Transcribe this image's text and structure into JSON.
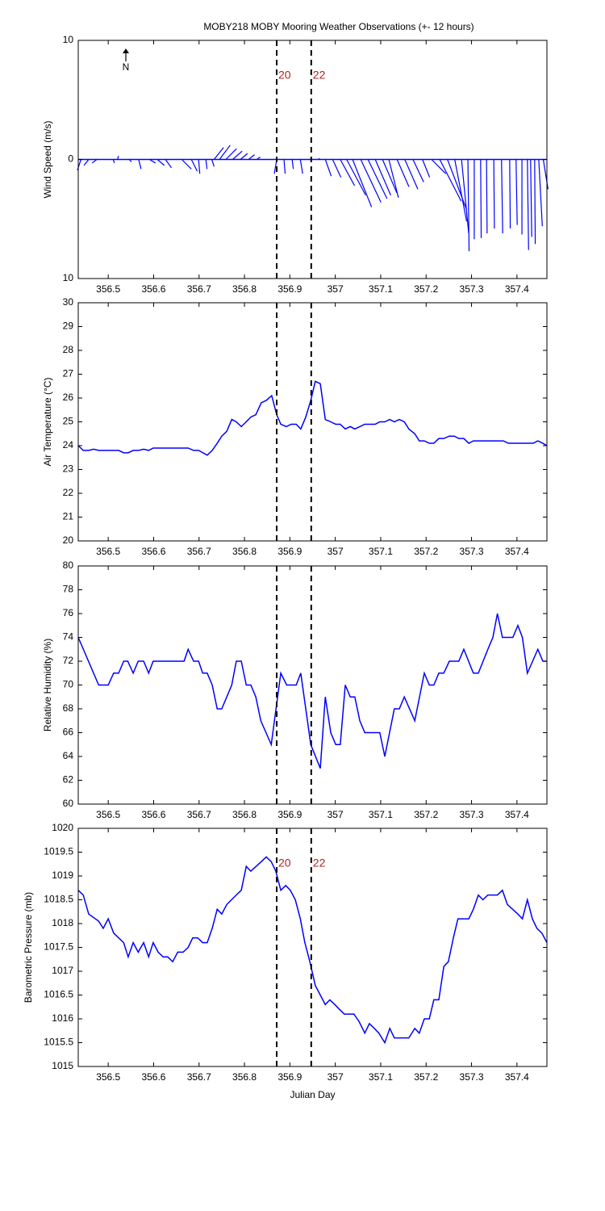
{
  "events": {
    "x": [
      356.871,
      356.947
    ],
    "labels": [
      "20",
      "22"
    ]
  },
  "chart_data": [
    {
      "type": "stick",
      "title": "MOBY218 MOBY Mooring Weather Observations (+- 12 hours)",
      "north_label": "N",
      "ylabel": "Wind Speed (m/s)",
      "color": "#0000ff",
      "xlim": [
        356.434,
        357.466
      ],
      "xticks": [
        356.5,
        356.6,
        356.7,
        356.8,
        356.9,
        357,
        357.1,
        357.2,
        357.3,
        357.4
      ],
      "ylim": [
        -10,
        10
      ],
      "yticks": [
        {
          "value": -10,
          "label": "10"
        },
        0,
        10
      ],
      "x": [
        356.44,
        356.457,
        356.475,
        356.511,
        356.521,
        356.546,
        356.567,
        356.591,
        356.608,
        356.626,
        356.662,
        356.683,
        356.699,
        356.715,
        356.728,
        356.733,
        356.745,
        356.759,
        356.774,
        356.791,
        356.809,
        356.827,
        356.871,
        356.887,
        356.905,
        356.923,
        356.963,
        356.978,
        356.994,
        357.011,
        357.025,
        357.038,
        357.056,
        357.072,
        357.088,
        357.104,
        357.118,
        357.136,
        357.153,
        357.171,
        357.192,
        357.212,
        357.23,
        357.247,
        357.263,
        357.278,
        357.292,
        357.306,
        357.32,
        357.333,
        357.349,
        357.366,
        357.384,
        357.398,
        357.411,
        357.423,
        357.43,
        357.439,
        357.448,
        357.458
      ],
      "u": [
        -0.3,
        -0.4,
        -0.4,
        0.1,
        0.05,
        0.2,
        0.2,
        0.5,
        0.6,
        0.5,
        0.8,
        0.5,
        0.1,
        0.1,
        0.2,
        0.8,
        0.9,
        0.9,
        0.8,
        0.6,
        0.5,
        0.3,
        -0.2,
        0.1,
        0.1,
        0.2,
        0.1,
        0.5,
        0.7,
        1.2,
        1.6,
        1.6,
        1.7,
        1.6,
        1.3,
        1.2,
        0.8,
        1.0,
        1.1,
        0.9,
        0.6,
        1.2,
        1.8,
        1.6,
        1.0,
        0.6,
        0.1,
        0,
        0.05,
        0.05,
        0.05,
        0.1,
        0.05,
        0.1,
        0,
        0.1,
        0.1,
        0.05,
        0.3,
        0.4
      ],
      "v": [
        -0.9,
        -0.5,
        -0.3,
        -0.3,
        0.3,
        -0.2,
        -0.8,
        -0.3,
        -0.5,
        -0.7,
        -0.8,
        -1.0,
        -1.2,
        -0.8,
        -0.6,
        1.0,
        1.2,
        0.9,
        0.7,
        0.5,
        0.4,
        0.2,
        -1.2,
        -1.2,
        -0.8,
        -1.2,
        0.1,
        -1.4,
        -1.5,
        -2.2,
        -3.0,
        -4.0,
        -3.6,
        -3.3,
        -3.0,
        -2.8,
        -3.2,
        -2.3,
        -2.5,
        -1.9,
        -1.5,
        -1.2,
        -3.5,
        -4.2,
        -5.2,
        -6.2,
        -7.7,
        -6.7,
        -6.6,
        -6.2,
        -5.8,
        -6.2,
        -5.8,
        -5.5,
        -6.3,
        -7.6,
        -6.5,
        -7.1,
        -5.6,
        -2.5
      ]
    },
    {
      "type": "line",
      "ylabel": "Air Temperature (°C)",
      "color": "#0000ff",
      "xlim": [
        356.434,
        357.466
      ],
      "xticks": [
        356.5,
        356.6,
        356.7,
        356.8,
        356.9,
        357,
        357.1,
        357.2,
        357.3,
        357.4
      ],
      "ylim": [
        20,
        30
      ],
      "yticks": [
        20,
        21,
        22,
        23,
        24,
        25,
        26,
        27,
        28,
        29,
        30
      ],
      "x": [
        356.434,
        356.445,
        356.457,
        356.468,
        356.479,
        356.523,
        356.534,
        356.544,
        356.555,
        356.567,
        356.578,
        356.589,
        356.599,
        356.676,
        356.688,
        356.699,
        356.718,
        356.729,
        356.74,
        356.75,
        356.761,
        356.772,
        356.782,
        356.793,
        356.804,
        356.814,
        356.825,
        356.837,
        356.848,
        356.86,
        356.871,
        356.88,
        356.892,
        356.903,
        356.914,
        356.924,
        356.935,
        356.946,
        356.956,
        356.967,
        356.978,
        356.99,
        357.001,
        357.011,
        357.022,
        357.033,
        357.043,
        357.054,
        357.065,
        357.088,
        357.098,
        357.109,
        357.12,
        357.13,
        357.141,
        357.152,
        357.162,
        357.175,
        357.185,
        357.196,
        357.207,
        357.217,
        357.228,
        357.239,
        357.251,
        357.262,
        357.272,
        357.283,
        357.294,
        357.304,
        357.37,
        357.381,
        357.436,
        357.446,
        357.457,
        357.466
      ],
      "values": [
        24.0,
        23.8,
        23.8,
        23.85,
        23.8,
        23.8,
        23.7,
        23.7,
        23.8,
        23.8,
        23.85,
        23.8,
        23.9,
        23.9,
        23.8,
        23.8,
        23.6,
        23.8,
        24.1,
        24.4,
        24.6,
        25.1,
        25.0,
        24.8,
        25.0,
        25.2,
        25.3,
        25.8,
        25.9,
        26.1,
        25.3,
        24.9,
        24.8,
        24.9,
        24.9,
        24.7,
        25.2,
        25.9,
        26.7,
        26.6,
        25.1,
        25.0,
        24.9,
        24.9,
        24.7,
        24.8,
        24.7,
        24.8,
        24.9,
        24.9,
        25.0,
        25.0,
        25.1,
        25.0,
        25.1,
        25.0,
        24.7,
        24.5,
        24.2,
        24.2,
        24.1,
        24.1,
        24.3,
        24.3,
        24.4,
        24.4,
        24.3,
        24.3,
        24.1,
        24.2,
        24.2,
        24.1,
        24.1,
        24.2,
        24.1,
        24.0
      ]
    },
    {
      "type": "line",
      "ylabel": "Relative Humidity (%)",
      "color": "#0000ff",
      "xlim": [
        356.434,
        357.466
      ],
      "xticks": [
        356.5,
        356.6,
        356.7,
        356.8,
        356.9,
        357,
        357.1,
        357.2,
        357.3,
        357.4
      ],
      "ylim": [
        60,
        80
      ],
      "yticks": [
        60,
        62,
        64,
        66,
        68,
        70,
        72,
        74,
        76,
        78,
        80
      ],
      "x": [
        356.434,
        356.479,
        356.5,
        356.512,
        356.523,
        356.534,
        356.543,
        356.555,
        356.566,
        356.578,
        356.589,
        356.599,
        356.667,
        356.676,
        356.688,
        356.699,
        356.708,
        356.718,
        356.729,
        356.74,
        356.75,
        356.772,
        356.782,
        356.793,
        356.804,
        356.814,
        356.825,
        356.836,
        356.859,
        356.88,
        356.893,
        356.914,
        356.924,
        356.946,
        356.967,
        356.978,
        356.99,
        357.001,
        357.011,
        357.022,
        357.033,
        357.043,
        357.054,
        357.065,
        357.098,
        357.109,
        357.13,
        357.141,
        357.152,
        357.175,
        357.196,
        357.207,
        357.217,
        357.228,
        357.239,
        357.251,
        357.272,
        357.283,
        357.304,
        357.315,
        357.336,
        357.347,
        357.357,
        357.368,
        357.391,
        357.402,
        357.412,
        357.423,
        357.446,
        357.457,
        357.466
      ],
      "values": [
        74,
        70,
        70,
        71,
        71,
        72,
        72,
        71,
        72,
        72,
        71,
        72,
        72,
        73,
        72,
        72,
        71,
        71,
        70,
        68,
        68,
        70,
        72,
        72,
        70,
        70,
        69,
        67,
        65,
        71,
        70,
        70,
        71,
        65,
        63,
        69,
        66,
        65,
        65,
        70,
        69,
        69,
        67,
        66,
        66,
        64,
        68,
        68,
        69,
        67,
        71,
        70,
        70,
        71,
        71,
        72,
        72,
        73,
        71,
        71,
        73,
        74,
        76,
        74,
        74,
        75,
        74,
        71,
        73,
        72,
        72
      ]
    },
    {
      "type": "line",
      "ylabel": "Barometric Pressure (mb)",
      "xlabel": "Julian Day",
      "color": "#0000ff",
      "xlim": [
        356.434,
        357.466
      ],
      "xticks": [
        356.5,
        356.6,
        356.7,
        356.8,
        356.9,
        357,
        357.1,
        357.2,
        357.3,
        357.4
      ],
      "ylim": [
        1015,
        1020
      ],
      "yticks": [
        1015,
        1015.5,
        1016,
        1016.5,
        1017,
        1017.5,
        1018,
        1018.5,
        1019,
        1019.5,
        1020
      ],
      "x": [
        356.434,
        356.445,
        356.457,
        356.479,
        356.489,
        356.5,
        356.512,
        356.523,
        356.534,
        356.544,
        356.555,
        356.566,
        356.578,
        356.589,
        356.599,
        356.61,
        356.621,
        356.631,
        356.642,
        356.653,
        356.665,
        356.676,
        356.686,
        356.697,
        356.708,
        356.718,
        356.729,
        356.74,
        356.75,
        356.761,
        356.782,
        356.793,
        356.804,
        356.814,
        356.837,
        356.848,
        356.859,
        356.869,
        356.88,
        356.891,
        356.901,
        356.912,
        356.923,
        356.933,
        356.944,
        356.956,
        356.967,
        356.978,
        356.988,
        356.999,
        357.009,
        357.02,
        357.041,
        357.052,
        357.065,
        357.075,
        357.086,
        357.096,
        357.109,
        357.12,
        357.13,
        357.162,
        357.175,
        357.185,
        357.196,
        357.207,
        357.217,
        357.228,
        357.239,
        357.249,
        357.26,
        357.27,
        357.294,
        357.304,
        357.315,
        357.325,
        357.336,
        357.357,
        357.368,
        357.379,
        357.402,
        357.412,
        357.423,
        357.434,
        357.444,
        357.455,
        357.466
      ],
      "values": [
        1018.7,
        1018.6,
        1018.2,
        1018.05,
        1017.9,
        1018.1,
        1017.8,
        1017.7,
        1017.6,
        1017.3,
        1017.6,
        1017.4,
        1017.6,
        1017.3,
        1017.6,
        1017.4,
        1017.3,
        1017.3,
        1017.2,
        1017.4,
        1017.4,
        1017.5,
        1017.7,
        1017.7,
        1017.6,
        1017.6,
        1017.9,
        1018.3,
        1018.2,
        1018.4,
        1018.6,
        1018.7,
        1019.2,
        1019.1,
        1019.3,
        1019.4,
        1019.3,
        1019.1,
        1018.7,
        1018.8,
        1018.7,
        1018.5,
        1018.1,
        1017.6,
        1017.2,
        1016.7,
        1016.5,
        1016.3,
        1016.4,
        1016.3,
        1016.2,
        1016.1,
        1016.1,
        1015.95,
        1015.7,
        1015.9,
        1015.8,
        1015.7,
        1015.5,
        1015.8,
        1015.6,
        1015.6,
        1015.8,
        1015.7,
        1016.0,
        1016.0,
        1016.4,
        1016.4,
        1017.1,
        1017.2,
        1017.7,
        1018.1,
        1018.1,
        1018.3,
        1018.6,
        1018.5,
        1018.6,
        1018.6,
        1018.7,
        1018.4,
        1018.2,
        1018.1,
        1018.5,
        1018.1,
        1017.9,
        1017.8,
        1017.6
      ]
    }
  ]
}
